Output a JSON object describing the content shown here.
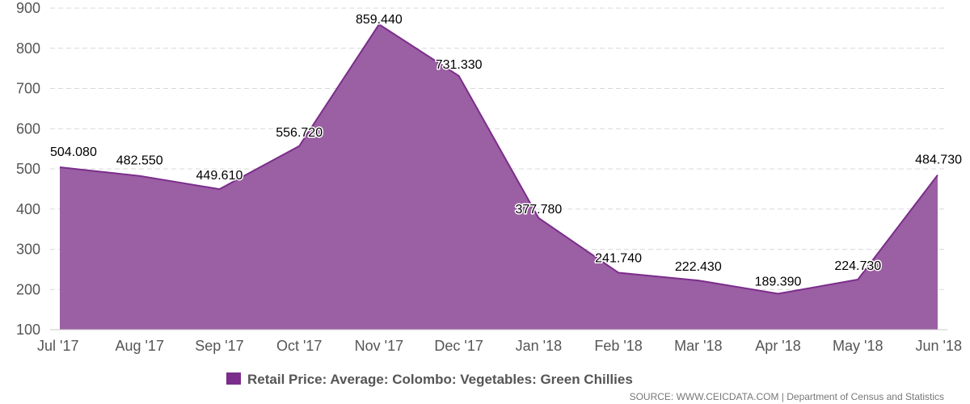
{
  "chart_data": {
    "type": "area",
    "categories": [
      "Jul '17",
      "Aug '17",
      "Sep '17",
      "Oct '17",
      "Nov '17",
      "Dec '17",
      "Jan '18",
      "Feb '18",
      "Mar '18",
      "Apr '18",
      "May '18",
      "Jun '18"
    ],
    "series": [
      {
        "name": "Retail Price: Average: Colombo: Vegetables: Green Chillies",
        "values": [
          504.08,
          482.55,
          449.61,
          556.72,
          859.44,
          731.33,
          377.78,
          241.74,
          222.43,
          189.39,
          224.73,
          484.73
        ],
        "labels": [
          "504.080",
          "482.550",
          "449.610",
          "556.720",
          "859.440",
          "731.330",
          "377.780",
          "241.740",
          "222.430",
          "189.390",
          "224.730",
          "484.730"
        ],
        "color": "#7b2d8b",
        "fill_color": "#9b5fa3"
      }
    ],
    "ylim": [
      100,
      900
    ],
    "yticks": [
      100,
      200,
      300,
      400,
      500,
      600,
      700,
      800,
      900
    ],
    "grid": true,
    "legend_position": "bottom-center",
    "source": "SOURCE: WWW.CEICDATA.COM | Department of Census and Statistics"
  }
}
